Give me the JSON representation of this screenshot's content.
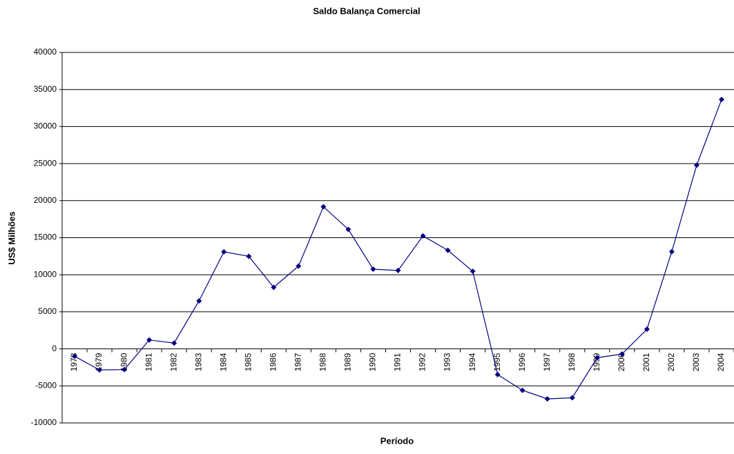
{
  "chart_data": {
    "type": "line",
    "title": "Saldo Balança Comercial",
    "x_label": "Período",
    "y_label": "US$ Milhões",
    "categories": [
      "1978",
      "1979",
      "1980",
      "1981",
      "1982",
      "1983",
      "1984",
      "1985",
      "1986",
      "1987",
      "1988",
      "1989",
      "1990",
      "1991",
      "1992",
      "1993",
      "1994",
      "1995",
      "1996",
      "1997",
      "1998",
      "1999",
      "2000",
      "2001",
      "2002",
      "2003",
      "2004"
    ],
    "series": [
      {
        "name": "Saldo",
        "color": "#000080",
        "values": [
          -1000,
          -2840,
          -2800,
          1200,
          780,
          6470,
          13090,
          12490,
          8300,
          11170,
          19180,
          16120,
          10750,
          10580,
          15240,
          13300,
          10470,
          -3470,
          -5600,
          -6750,
          -6600,
          -1200,
          -700,
          2650,
          13120,
          24790,
          33640
        ]
      }
    ],
    "ylim": [
      -10000,
      40000
    ],
    "yticks": [
      -10000,
      -5000,
      0,
      5000,
      10000,
      15000,
      20000,
      25000,
      30000,
      35000,
      40000
    ],
    "grid": true
  }
}
